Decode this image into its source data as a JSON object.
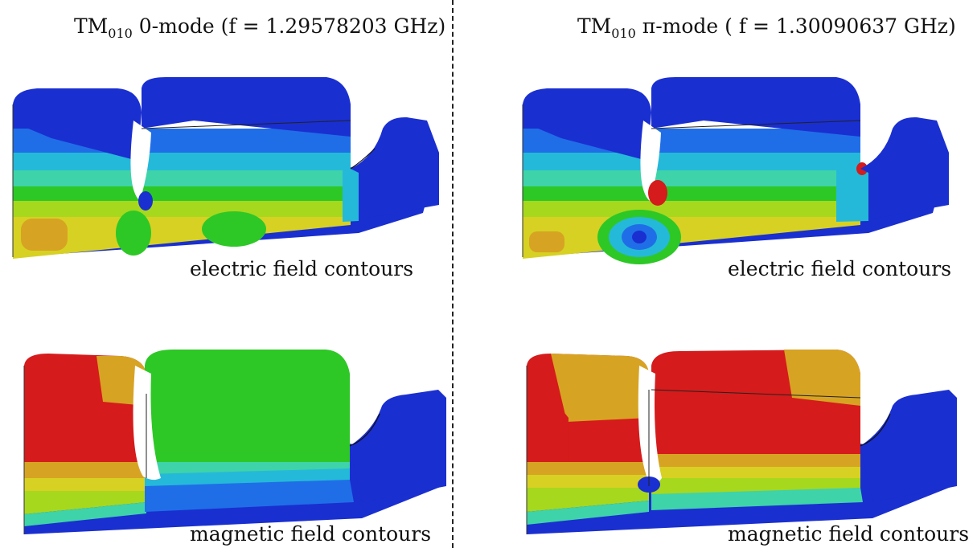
{
  "left": {
    "title_prefix": "TM",
    "title_sub": "010",
    "title_suffix": " 0-mode (f = 1.29578203 GHz)",
    "electric_caption": "electric field contours",
    "magnetic_caption": "magnetic field contours"
  },
  "right": {
    "title_prefix": "TM",
    "title_sub": "010",
    "title_suffix": " π-mode ( f = 1.30090637 GHz)",
    "electric_caption": "electric field contours",
    "magnetic_caption": "magnetic field contours"
  },
  "colors": {
    "blue": "#1a2fd0",
    "mid_blue": "#1f6ee8",
    "cyan": "#25b9d9",
    "teal": "#3ed3a9",
    "green": "#2dc826",
    "yellow_green": "#a6d81e",
    "yellow": "#d7d123",
    "orange": "#d7a323",
    "red": "#d51b1b"
  }
}
